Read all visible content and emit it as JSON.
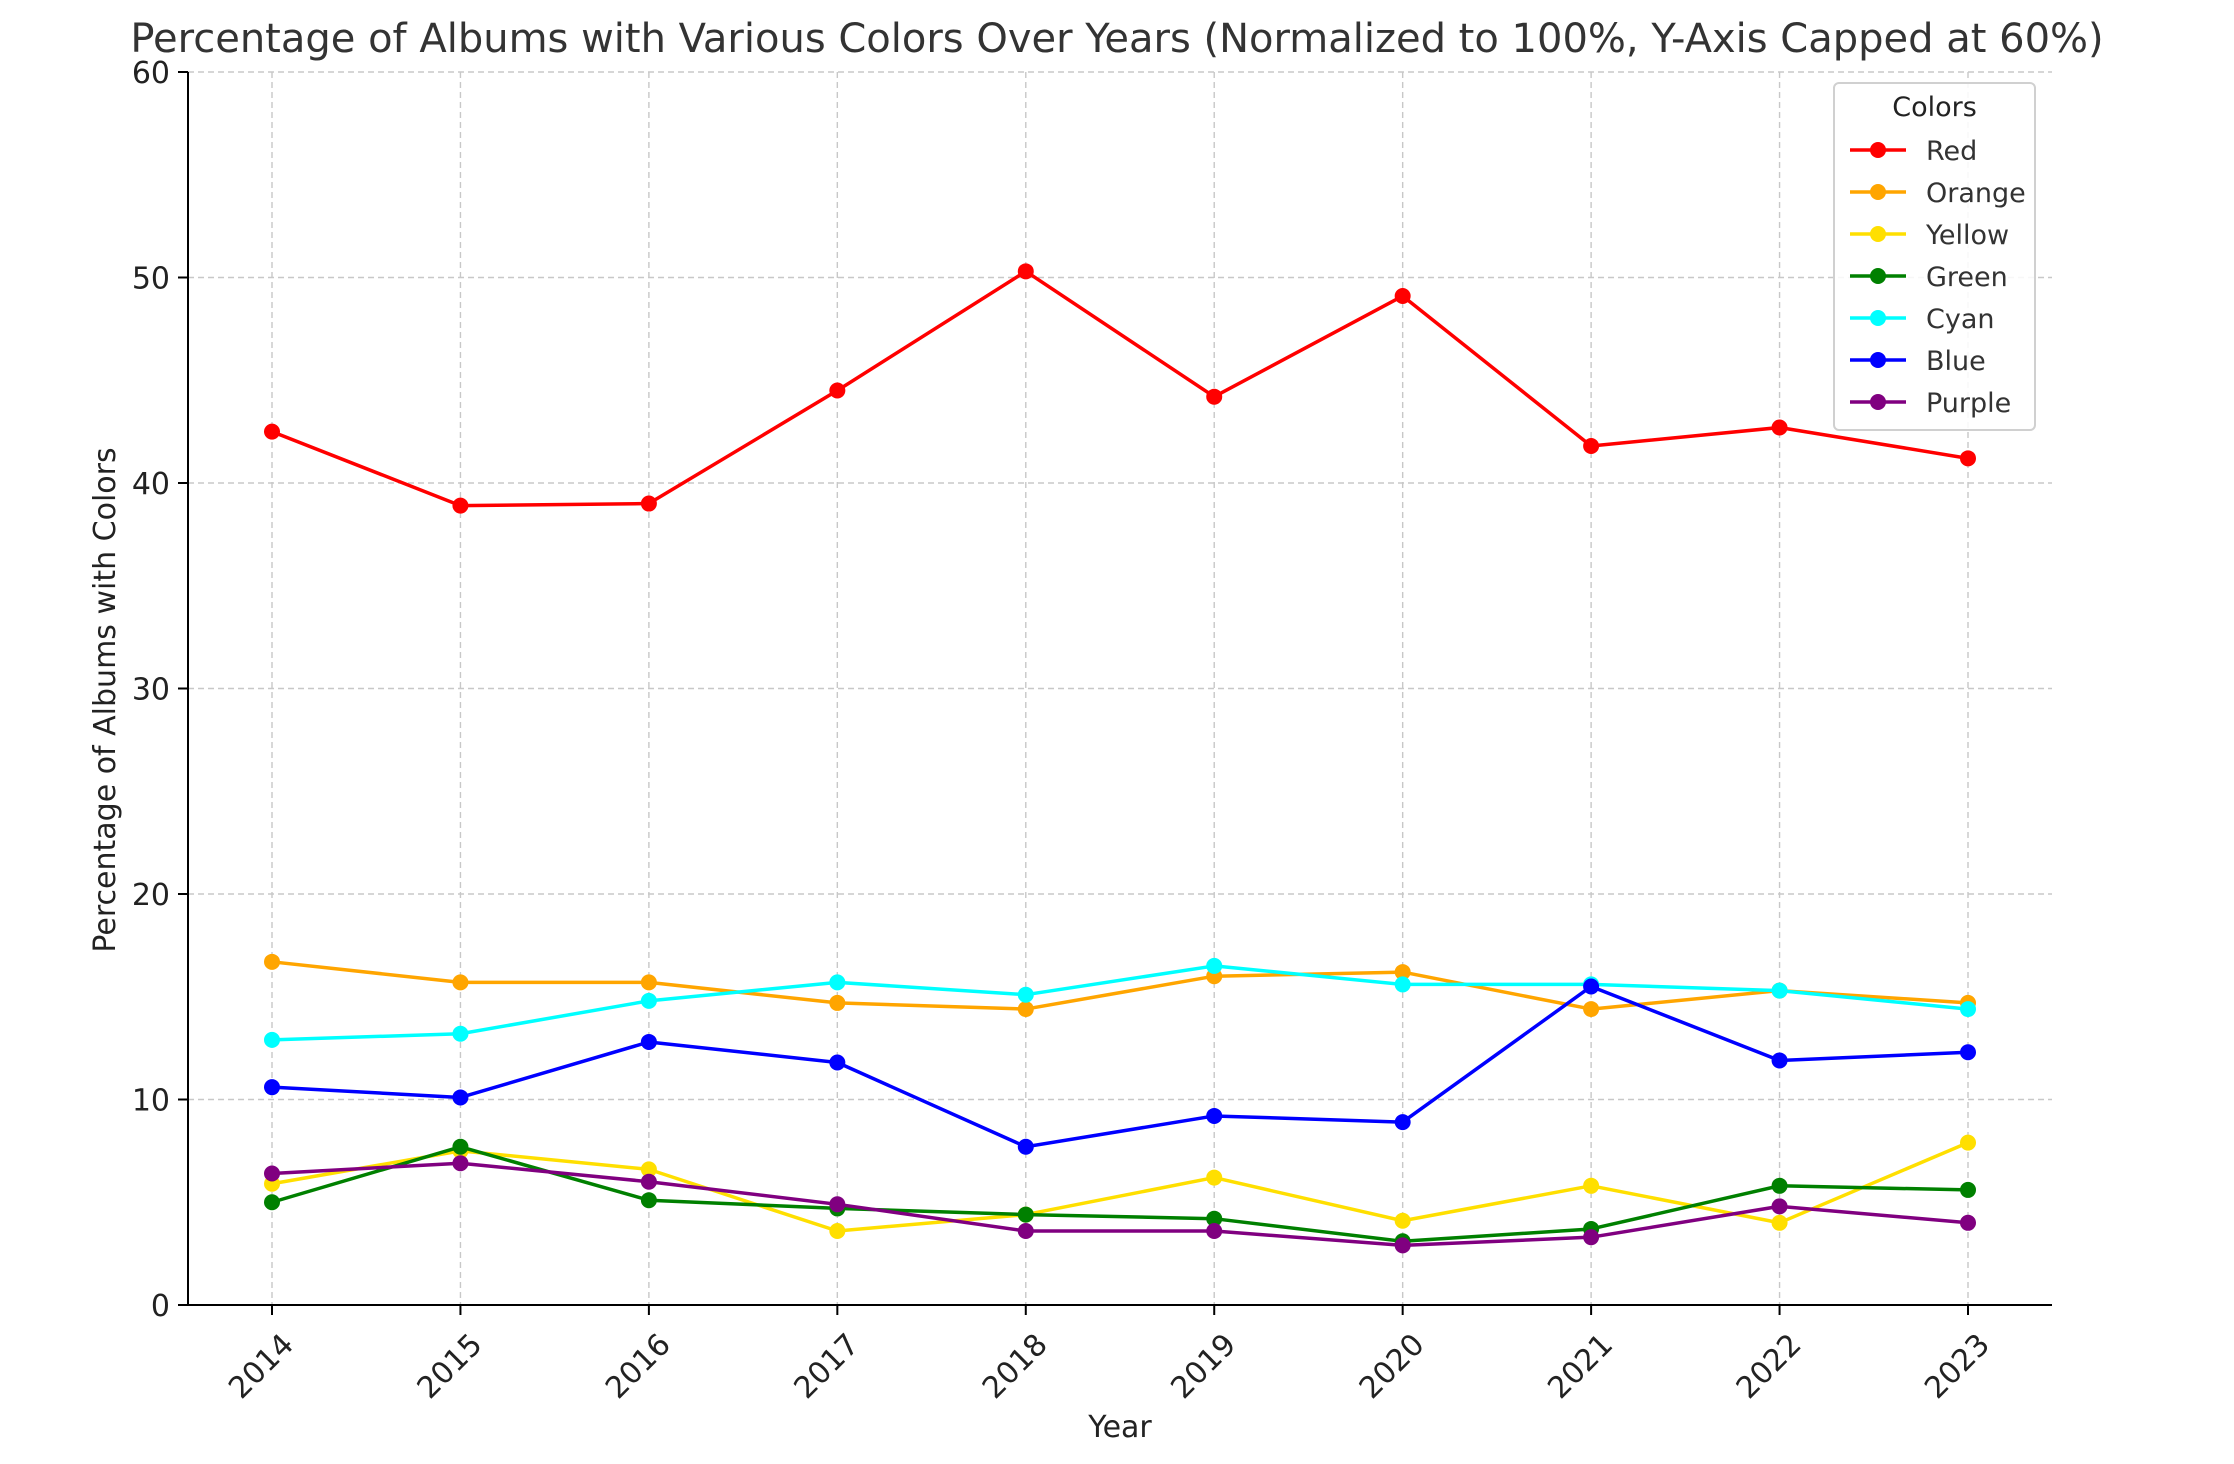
{
  "chart_data": {
    "type": "line",
    "title": "Percentage of Albums with Various Colors Over Years (Normalized to 100%, Y-Axis Capped at 60%)",
    "xlabel": "Year",
    "ylabel": "Percentage of Albums with Colors",
    "x": [
      "2014",
      "2015",
      "2016",
      "2017",
      "2018",
      "2019",
      "2020",
      "2021",
      "2022",
      "2023"
    ],
    "ylim": [
      0,
      60
    ],
    "yticks": [
      0,
      10,
      20,
      30,
      40,
      50,
      60
    ],
    "grid": true,
    "legend": {
      "title": "Colors",
      "placement": "top-right"
    },
    "series": [
      {
        "name": "Red",
        "color": "#ff0000",
        "values": [
          42.5,
          38.9,
          39.0,
          44.5,
          50.3,
          44.2,
          49.1,
          41.8,
          42.7,
          41.2
        ]
      },
      {
        "name": "Orange",
        "color": "#ffa500",
        "values": [
          16.7,
          15.7,
          15.7,
          14.7,
          14.4,
          16.0,
          16.2,
          14.4,
          15.3,
          14.7
        ]
      },
      {
        "name": "Yellow",
        "color": "#ffdf00",
        "values": [
          5.9,
          7.5,
          6.6,
          3.6,
          4.4,
          6.2,
          4.1,
          5.8,
          4.0,
          7.9
        ]
      },
      {
        "name": "Green",
        "color": "#008000",
        "values": [
          5.0,
          7.7,
          5.1,
          4.7,
          4.4,
          4.2,
          3.1,
          3.7,
          5.8,
          5.6
        ]
      },
      {
        "name": "Cyan",
        "color": "#00ffff",
        "values": [
          12.9,
          13.2,
          14.8,
          15.7,
          15.1,
          16.5,
          15.6,
          15.6,
          15.3,
          14.4
        ]
      },
      {
        "name": "Blue",
        "color": "#0000ff",
        "values": [
          10.6,
          10.1,
          12.8,
          11.8,
          7.7,
          9.2,
          8.9,
          15.5,
          11.9,
          12.3
        ]
      },
      {
        "name": "Purple",
        "color": "#800080",
        "values": [
          6.4,
          6.9,
          6.0,
          4.9,
          3.6,
          3.6,
          2.9,
          3.3,
          4.8,
          4.0
        ]
      }
    ]
  }
}
